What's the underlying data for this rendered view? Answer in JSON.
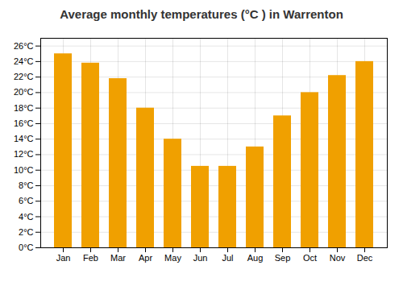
{
  "chart_data": {
    "type": "bar",
    "title": "Average monthly temperatures (°C ) in Warrenton",
    "categories": [
      "Jan",
      "Feb",
      "Mar",
      "Apr",
      "May",
      "Jun",
      "Jul",
      "Aug",
      "Sep",
      "Oct",
      "Nov",
      "Dec"
    ],
    "values": [
      25.0,
      23.8,
      21.8,
      18.0,
      14.0,
      10.5,
      10.5,
      13.0,
      17.0,
      20.0,
      22.2,
      24.0
    ],
    "color": "#F0A000",
    "ylim": [
      0,
      27
    ],
    "yticks": [
      {
        "value": 0,
        "label": "0°C"
      },
      {
        "value": 2,
        "label": "2°C"
      },
      {
        "value": 4,
        "label": "4°C"
      },
      {
        "value": 6,
        "label": "6°C"
      },
      {
        "value": 8,
        "label": "8°C"
      },
      {
        "value": 10,
        "label": "10°C"
      },
      {
        "value": 12,
        "label": "12°C"
      },
      {
        "value": 14,
        "label": "14°C"
      },
      {
        "value": 16,
        "label": "16°C"
      },
      {
        "value": 18,
        "label": "18°C"
      },
      {
        "value": 20,
        "label": "20°C"
      },
      {
        "value": 22,
        "label": "22°C"
      },
      {
        "value": 24,
        "label": "24°C"
      },
      {
        "value": 26,
        "label": "26°C"
      }
    ],
    "grid": true
  }
}
